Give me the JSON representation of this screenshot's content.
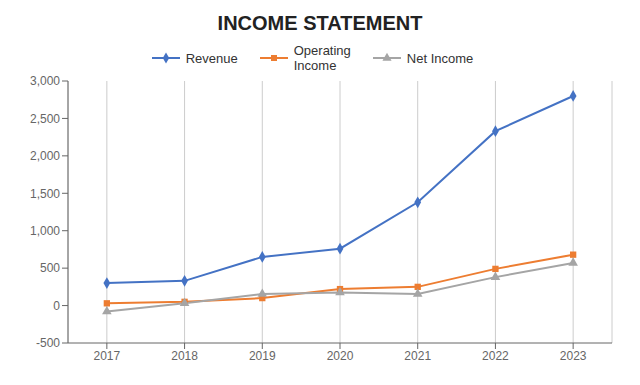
{
  "chart_data": {
    "type": "line",
    "title": "INCOME STATEMENT",
    "x": [
      2017,
      2018,
      2019,
      2020,
      2021,
      2022,
      2023
    ],
    "series": [
      {
        "name": "Revenue",
        "color": "#4472C4",
        "marker": "diamond",
        "values": [
          300,
          330,
          650,
          760,
          1380,
          2330,
          2800
        ]
      },
      {
        "name": "Operating\nIncome",
        "color": "#ED7D31",
        "marker": "square",
        "values": [
          30,
          50,
          100,
          220,
          250,
          490,
          680
        ]
      },
      {
        "name": "Net Income",
        "color": "#A5A5A5",
        "marker": "triangle",
        "values": [
          -80,
          30,
          155,
          175,
          155,
          380,
          570
        ]
      }
    ],
    "xlim": [
      2016.5,
      2023.5
    ],
    "xticks": [
      2017,
      2018,
      2019,
      2020,
      2021,
      2022,
      2023
    ],
    "ylim": [
      -500,
      3000
    ],
    "yticks": [
      -500,
      0,
      500,
      {
        "value": 1000,
        "label": "1,000"
      },
      {
        "value": 1500,
        "label": "1,500"
      },
      {
        "value": 2000,
        "label": "2,000"
      },
      {
        "value": 2500,
        "label": "2,500"
      },
      {
        "value": 3000,
        "label": "3,000"
      }
    ],
    "grid": "x",
    "legend": "top"
  }
}
